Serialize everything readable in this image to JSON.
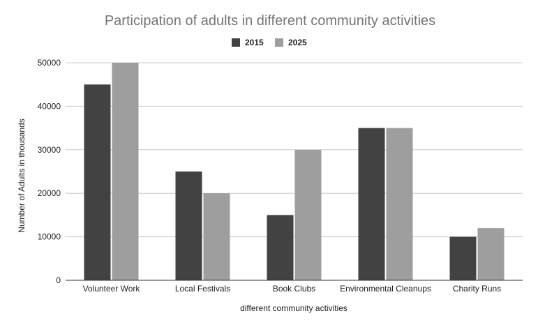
{
  "chart_data": {
    "type": "bar",
    "title": "Participation of adults in different community activities",
    "xlabel": "different community activities",
    "ylabel": "Number of Adults in thousands",
    "categories": [
      "Volunteer Work",
      "Local Festivals",
      "Book Clubs",
      "Environmental Cleanups",
      "Charity Runs"
    ],
    "series": [
      {
        "name": "2015",
        "values": [
          45000,
          25000,
          15000,
          35000,
          10000
        ],
        "color": "#424242"
      },
      {
        "name": "2025",
        "values": [
          50000,
          20000,
          30000,
          35000,
          12000
        ],
        "color": "#9e9e9e"
      }
    ],
    "ylim": [
      0,
      50000
    ],
    "yticks": [
      "0",
      "10000",
      "20000",
      "30000",
      "40000",
      "50000"
    ],
    "grid": true,
    "legend_position": "top-center"
  }
}
